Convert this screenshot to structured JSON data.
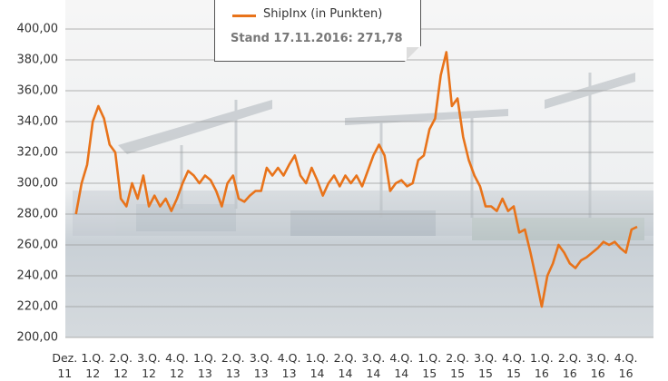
{
  "chart_data": {
    "type": "line",
    "x": [
      0.4,
      0.6,
      0.8,
      1.0,
      1.2,
      1.4,
      1.6,
      1.8,
      2.0,
      2.2,
      2.4,
      2.6,
      2.8,
      3.0,
      3.2,
      3.4,
      3.6,
      3.8,
      4.0,
      4.2,
      4.4,
      4.6,
      4.8,
      5.0,
      5.2,
      5.4,
      5.6,
      5.8,
      6.0,
      6.2,
      6.4,
      6.6,
      6.8,
      7.0,
      7.2,
      7.4,
      7.6,
      7.8,
      8.0,
      8.2,
      8.4,
      8.6,
      8.8,
      9.0,
      9.2,
      9.4,
      9.6,
      9.8,
      10.0,
      10.2,
      10.4,
      10.6,
      10.8,
      11.0,
      11.2,
      11.4,
      11.6,
      11.8,
      12.0,
      12.2,
      12.4,
      12.6,
      12.8,
      13.0,
      13.2,
      13.4,
      13.6,
      13.8,
      14.0,
      14.2,
      14.4,
      14.6,
      14.8,
      15.0,
      15.2,
      15.4,
      15.6,
      15.8,
      16.0,
      16.2,
      16.4,
      16.6,
      16.8,
      17.0,
      17.2,
      17.4,
      17.6,
      17.8,
      18.0,
      18.2,
      18.4,
      18.6,
      18.8,
      19.0,
      19.2,
      19.4,
      19.6,
      19.8,
      20.0,
      20.2,
      20.4
    ],
    "series": [
      {
        "name": "ShipInx (in Punkten)",
        "color": "#e8731a",
        "values": [
          280,
          300,
          312,
          340,
          350,
          342,
          325,
          320,
          290,
          285,
          300,
          290,
          305,
          285,
          292,
          285,
          290,
          282,
          290,
          300,
          308,
          305,
          300,
          305,
          302,
          295,
          285,
          300,
          305,
          290,
          288,
          292,
          295,
          295,
          310,
          305,
          310,
          305,
          312,
          318,
          305,
          300,
          310,
          302,
          292,
          300,
          305,
          298,
          305,
          300,
          305,
          298,
          308,
          318,
          325,
          318,
          295,
          300,
          302,
          298,
          300,
          315,
          318,
          335,
          342,
          370,
          385,
          350,
          355,
          330,
          315,
          305,
          298,
          285,
          285,
          282,
          290,
          282,
          285,
          268,
          270,
          255,
          238,
          220,
          240,
          248,
          260,
          255,
          248,
          245,
          250,
          252,
          255,
          258,
          262,
          260,
          262,
          258,
          255,
          270,
          271.78
        ]
      }
    ],
    "annotation": "Stand 17.11.2016: 271,78",
    "xlim": [
      -0.44,
      20.52
    ],
    "xticks": [
      {
        "value": 0,
        "label": "Dez. 11"
      },
      {
        "value": 1,
        "label": "1.Q. 12"
      },
      {
        "value": 2,
        "label": "2.Q. 12"
      },
      {
        "value": 3,
        "label": "3.Q. 12"
      },
      {
        "value": 4,
        "label": "4.Q. 12"
      },
      {
        "value": 5,
        "label": "1.Q. 13"
      },
      {
        "value": 6,
        "label": "2.Q. 13"
      },
      {
        "value": 7,
        "label": "3.Q. 13"
      },
      {
        "value": 8,
        "label": "4.Q. 13"
      },
      {
        "value": 9,
        "label": "1.Q. 14"
      },
      {
        "value": 10,
        "label": "2.Q. 14"
      },
      {
        "value": 11,
        "label": "3.Q. 14"
      },
      {
        "value": 12,
        "label": "4.Q. 14"
      },
      {
        "value": 13,
        "label": "1.Q. 15"
      },
      {
        "value": 14,
        "label": "2.Q. 15"
      },
      {
        "value": 15,
        "label": "3.Q. 15"
      },
      {
        "value": 16,
        "label": "4.Q. 15"
      },
      {
        "value": 17,
        "label": "1.Q. 16"
      },
      {
        "value": 18,
        "label": "2.Q. 16"
      },
      {
        "value": 19,
        "label": "3.Q. 16"
      },
      {
        "value": 20,
        "label": "4.Q. 16"
      }
    ],
    "ylim": [
      200,
      400
    ],
    "yticks": [
      {
        "value": 200,
        "label": "200,00"
      },
      {
        "value": 220,
        "label": "220,00"
      },
      {
        "value": 240,
        "label": "240,00"
      },
      {
        "value": 260,
        "label": "260,00"
      },
      {
        "value": 280,
        "label": "280,00"
      },
      {
        "value": 300,
        "label": "300,00"
      },
      {
        "value": 320,
        "label": "320,00"
      },
      {
        "value": 340,
        "label": "340,00"
      },
      {
        "value": 360,
        "label": "360,00"
      },
      {
        "value": 380,
        "label": "380,00"
      },
      {
        "value": 400,
        "label": "400,00"
      }
    ],
    "grid": true
  }
}
